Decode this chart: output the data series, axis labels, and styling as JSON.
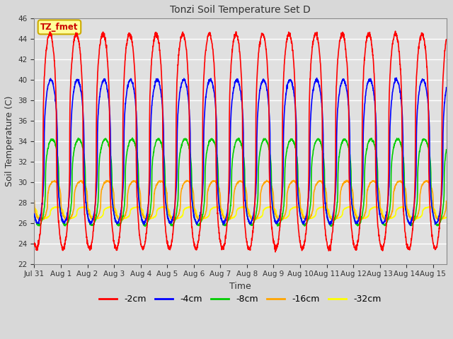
{
  "title": "Tonzi Soil Temperature Set D",
  "xlabel": "Time",
  "ylabel": "Soil Temperature (C)",
  "ylim": [
    22,
    46
  ],
  "yticks": [
    22,
    24,
    26,
    28,
    30,
    32,
    34,
    36,
    38,
    40,
    42,
    44,
    46
  ],
  "series_colors": {
    "-2cm": "#ff0000",
    "-4cm": "#0000ff",
    "-8cm": "#00cc00",
    "-16cm": "#ffa500",
    "-32cm": "#ffff00"
  },
  "series_linewidth": 1.2,
  "fig_bg_color": "#d8d8d8",
  "plot_bg_color": "#e0e0e0",
  "grid_color": "#ffffff",
  "annotation_text": "TZ_fmet",
  "annotation_bg": "#ffff99",
  "annotation_border": "#ccaa00",
  "num_days": 15.5,
  "points_per_day": 144,
  "tick_labels": [
    "Jul 31",
    "Aug 1",
    "Aug 2",
    "Aug 3",
    "Aug 4",
    "Aug 5",
    "Aug 6",
    "Aug 7",
    "Aug 8",
    "Aug 9",
    "Aug 10",
    "Aug 11",
    "Aug 12",
    "Aug 13",
    "Aug 14",
    "Aug 15"
  ]
}
